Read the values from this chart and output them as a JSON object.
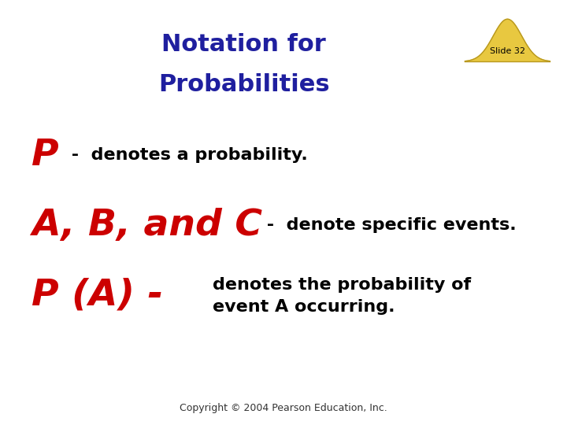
{
  "title_line1": "Notation for",
  "title_line2": "Probabilities",
  "title_color": "#1f1f9f",
  "slide_label": "Slide 32",
  "red_color": "#cc0000",
  "black_color": "#000000",
  "bg_color": "#ffffff",
  "line1_red": "P",
  "line1_black": " -  denotes a probability.",
  "line2_red": "A, B, and C",
  "line2_black": " -  denote specific events.",
  "line3_red": "P (A) -",
  "line3_black1": "denotes the probability of",
  "line3_black2": "event A occurring.",
  "copyright": "Copyright © 2004 Pearson Education, Inc.",
  "bell_color": "#e8c840",
  "bell_edge_color": "#b89820",
  "title_fontsize": 22,
  "red_large_fontsize": 34,
  "black_body_fontsize": 16,
  "slide_label_fontsize": 8,
  "copyright_fontsize": 9
}
